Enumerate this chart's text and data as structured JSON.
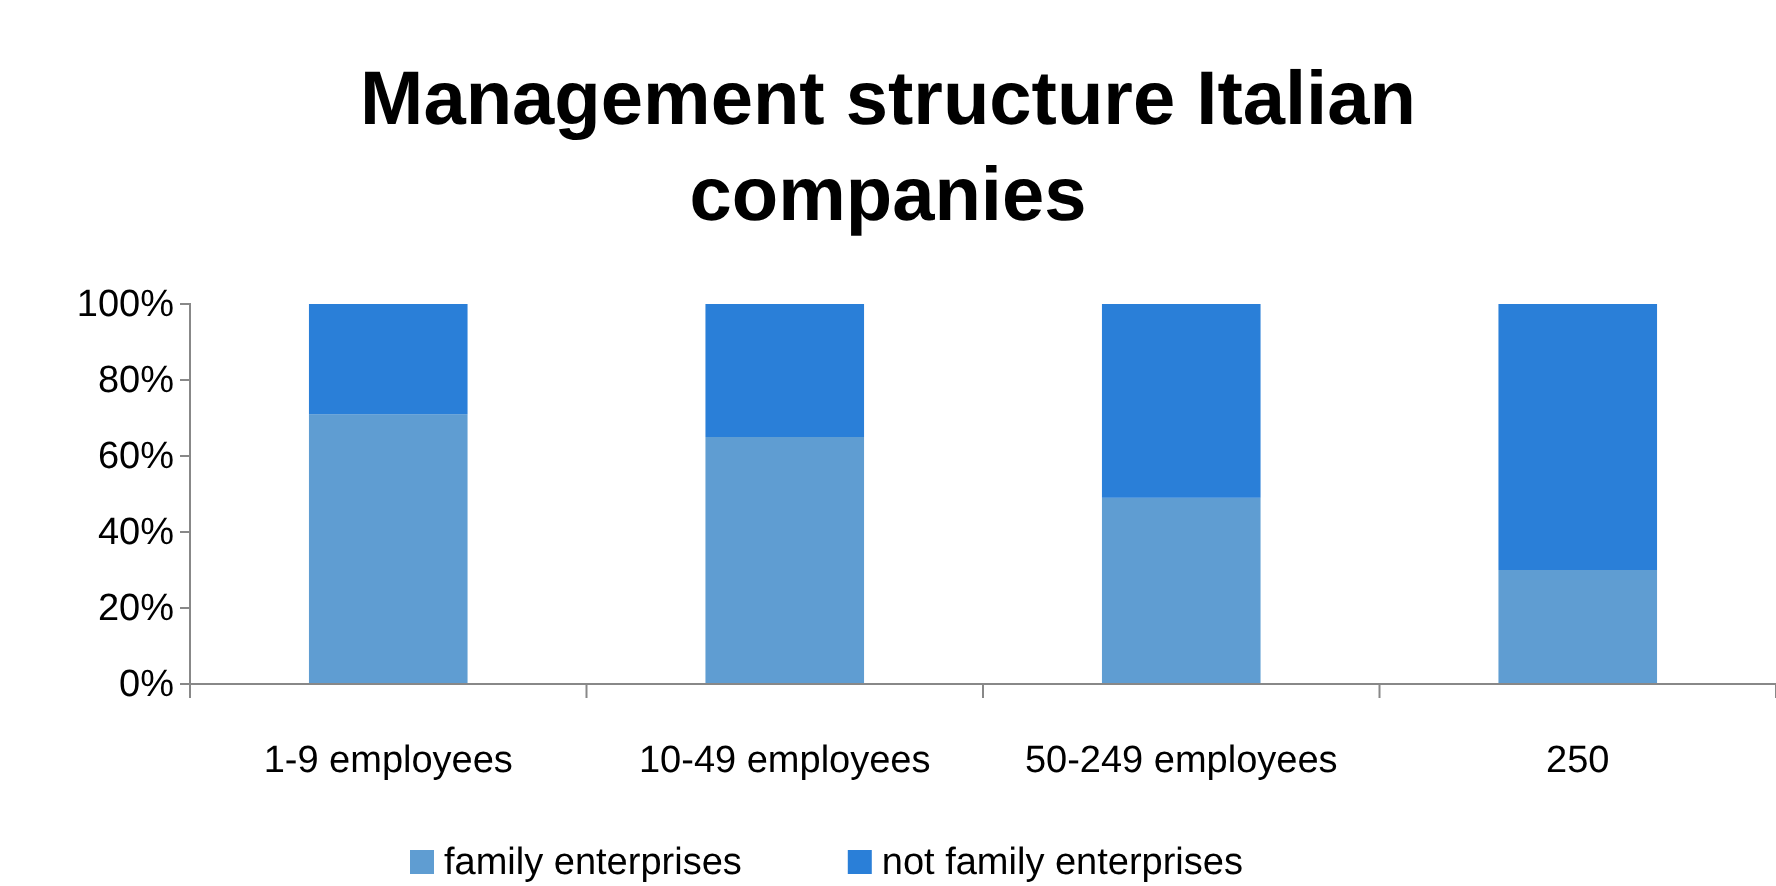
{
  "chart_data": {
    "type": "bar",
    "title": "Management structure Italian companies",
    "categories": [
      "1-9 employees",
      "10-49 employees",
      "50-249 employees",
      "250"
    ],
    "stacked": true,
    "series": [
      {
        "name": "family enterprises",
        "color": "#5f9dd2",
        "values": [
          71,
          65,
          49,
          30
        ]
      },
      {
        "name": "not family enterprises",
        "color": "#2a7fd8",
        "values": [
          29,
          35,
          51,
          70
        ]
      }
    ],
    "ylim": [
      0,
      100
    ],
    "yticks": [
      {
        "value": 0,
        "label": "0%"
      },
      {
        "value": 20,
        "label": "20%"
      },
      {
        "value": 40,
        "label": "40%"
      },
      {
        "value": 60,
        "label": "60%"
      },
      {
        "value": 80,
        "label": "80%"
      },
      {
        "value": 100,
        "label": "100%"
      }
    ],
    "grid": false,
    "legend": "bottom"
  }
}
